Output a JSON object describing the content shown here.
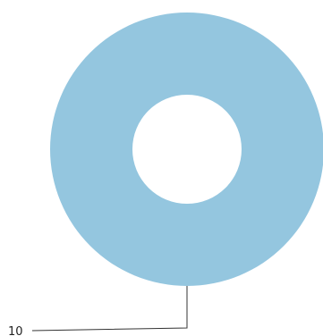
{
  "chart_data": {
    "type": "pie",
    "variant": "donut",
    "title": "",
    "categories": [
      ""
    ],
    "values": [
      10
    ],
    "data_labels": [
      "10"
    ],
    "colors": [
      "#94c6df"
    ],
    "legend": "none",
    "grid": false
  }
}
